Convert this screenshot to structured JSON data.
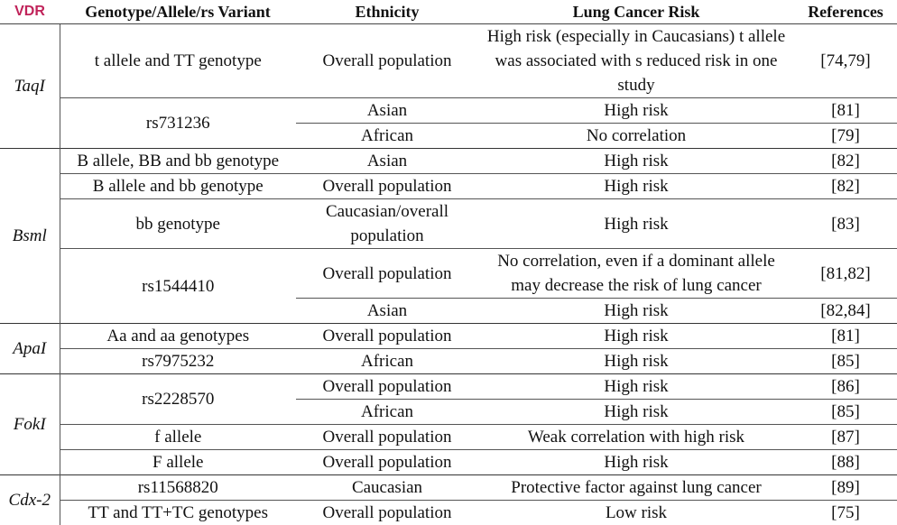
{
  "header": {
    "vdr": "VDR",
    "genotype": "Genotype/Allele/rs Variant",
    "ethnicity": "Ethnicity",
    "risk": "Lung Cancer Risk",
    "references": "References"
  },
  "groups": [
    {
      "name": "TaqI",
      "variants": [
        {
          "genotype": "t allele and TT genotype",
          "entries": [
            {
              "ethnicity": "Overall population",
              "risk": "High risk (especially in Caucasians) t allele was associated with s reduced risk in one study",
              "references": "[74,79]"
            }
          ]
        },
        {
          "genotype": "rs731236",
          "entries": [
            {
              "ethnicity": "Asian",
              "risk": "High risk",
              "references": "[81]"
            },
            {
              "ethnicity": "African",
              "risk": "No correlation",
              "references": "[79]"
            }
          ]
        }
      ]
    },
    {
      "name": "Bsml",
      "variants": [
        {
          "genotype": "B allele, BB and bb genotype",
          "entries": [
            {
              "ethnicity": "Asian",
              "risk": "High risk",
              "references": "[82]"
            }
          ]
        },
        {
          "genotype": "B allele and bb genotype",
          "entries": [
            {
              "ethnicity": "Overall population",
              "risk": "High risk",
              "references": "[82]"
            }
          ]
        },
        {
          "genotype": "bb genotype",
          "entries": [
            {
              "ethnicity": "Caucasian/overall population",
              "risk": "High risk",
              "references": "[83]"
            }
          ]
        },
        {
          "genotype": "rs1544410",
          "entries": [
            {
              "ethnicity": "Overall population",
              "risk": "No correlation, even if a dominant allele may decrease the risk of lung cancer",
              "references": "[81,82]"
            },
            {
              "ethnicity": "Asian",
              "risk": "High risk",
              "references": "[82,84]"
            }
          ]
        }
      ]
    },
    {
      "name": "ApaI",
      "variants": [
        {
          "genotype": "Aa and aa genotypes",
          "entries": [
            {
              "ethnicity": "Overall population",
              "risk": "High risk",
              "references": "[81]"
            }
          ]
        },
        {
          "genotype": "rs7975232",
          "entries": [
            {
              "ethnicity": "African",
              "risk": "High risk",
              "references": "[85]"
            }
          ]
        }
      ]
    },
    {
      "name": "FokI",
      "variants": [
        {
          "genotype": "rs2228570",
          "entries": [
            {
              "ethnicity": "Overall population",
              "risk": "High risk",
              "references": "[86]"
            },
            {
              "ethnicity": "African",
              "risk": "High risk",
              "references": "[85]"
            }
          ]
        },
        {
          "genotype": "f allele",
          "entries": [
            {
              "ethnicity": "Overall population",
              "risk": "Weak correlation with high risk",
              "references": "[87]"
            }
          ]
        },
        {
          "genotype": "F allele",
          "entries": [
            {
              "ethnicity": "Overall population",
              "risk": "High risk",
              "references": "[88]"
            }
          ]
        }
      ]
    },
    {
      "name": "Cdx-2",
      "variants": [
        {
          "genotype": "rs11568820",
          "entries": [
            {
              "ethnicity": "Caucasian",
              "risk": "Protective factor against lung cancer",
              "references": "[89]"
            }
          ]
        },
        {
          "genotype": "TT and TT+TC genotypes",
          "entries": [
            {
              "ethnicity": "Overall population",
              "risk": "Low risk",
              "references": "[75]"
            }
          ]
        }
      ]
    }
  ]
}
